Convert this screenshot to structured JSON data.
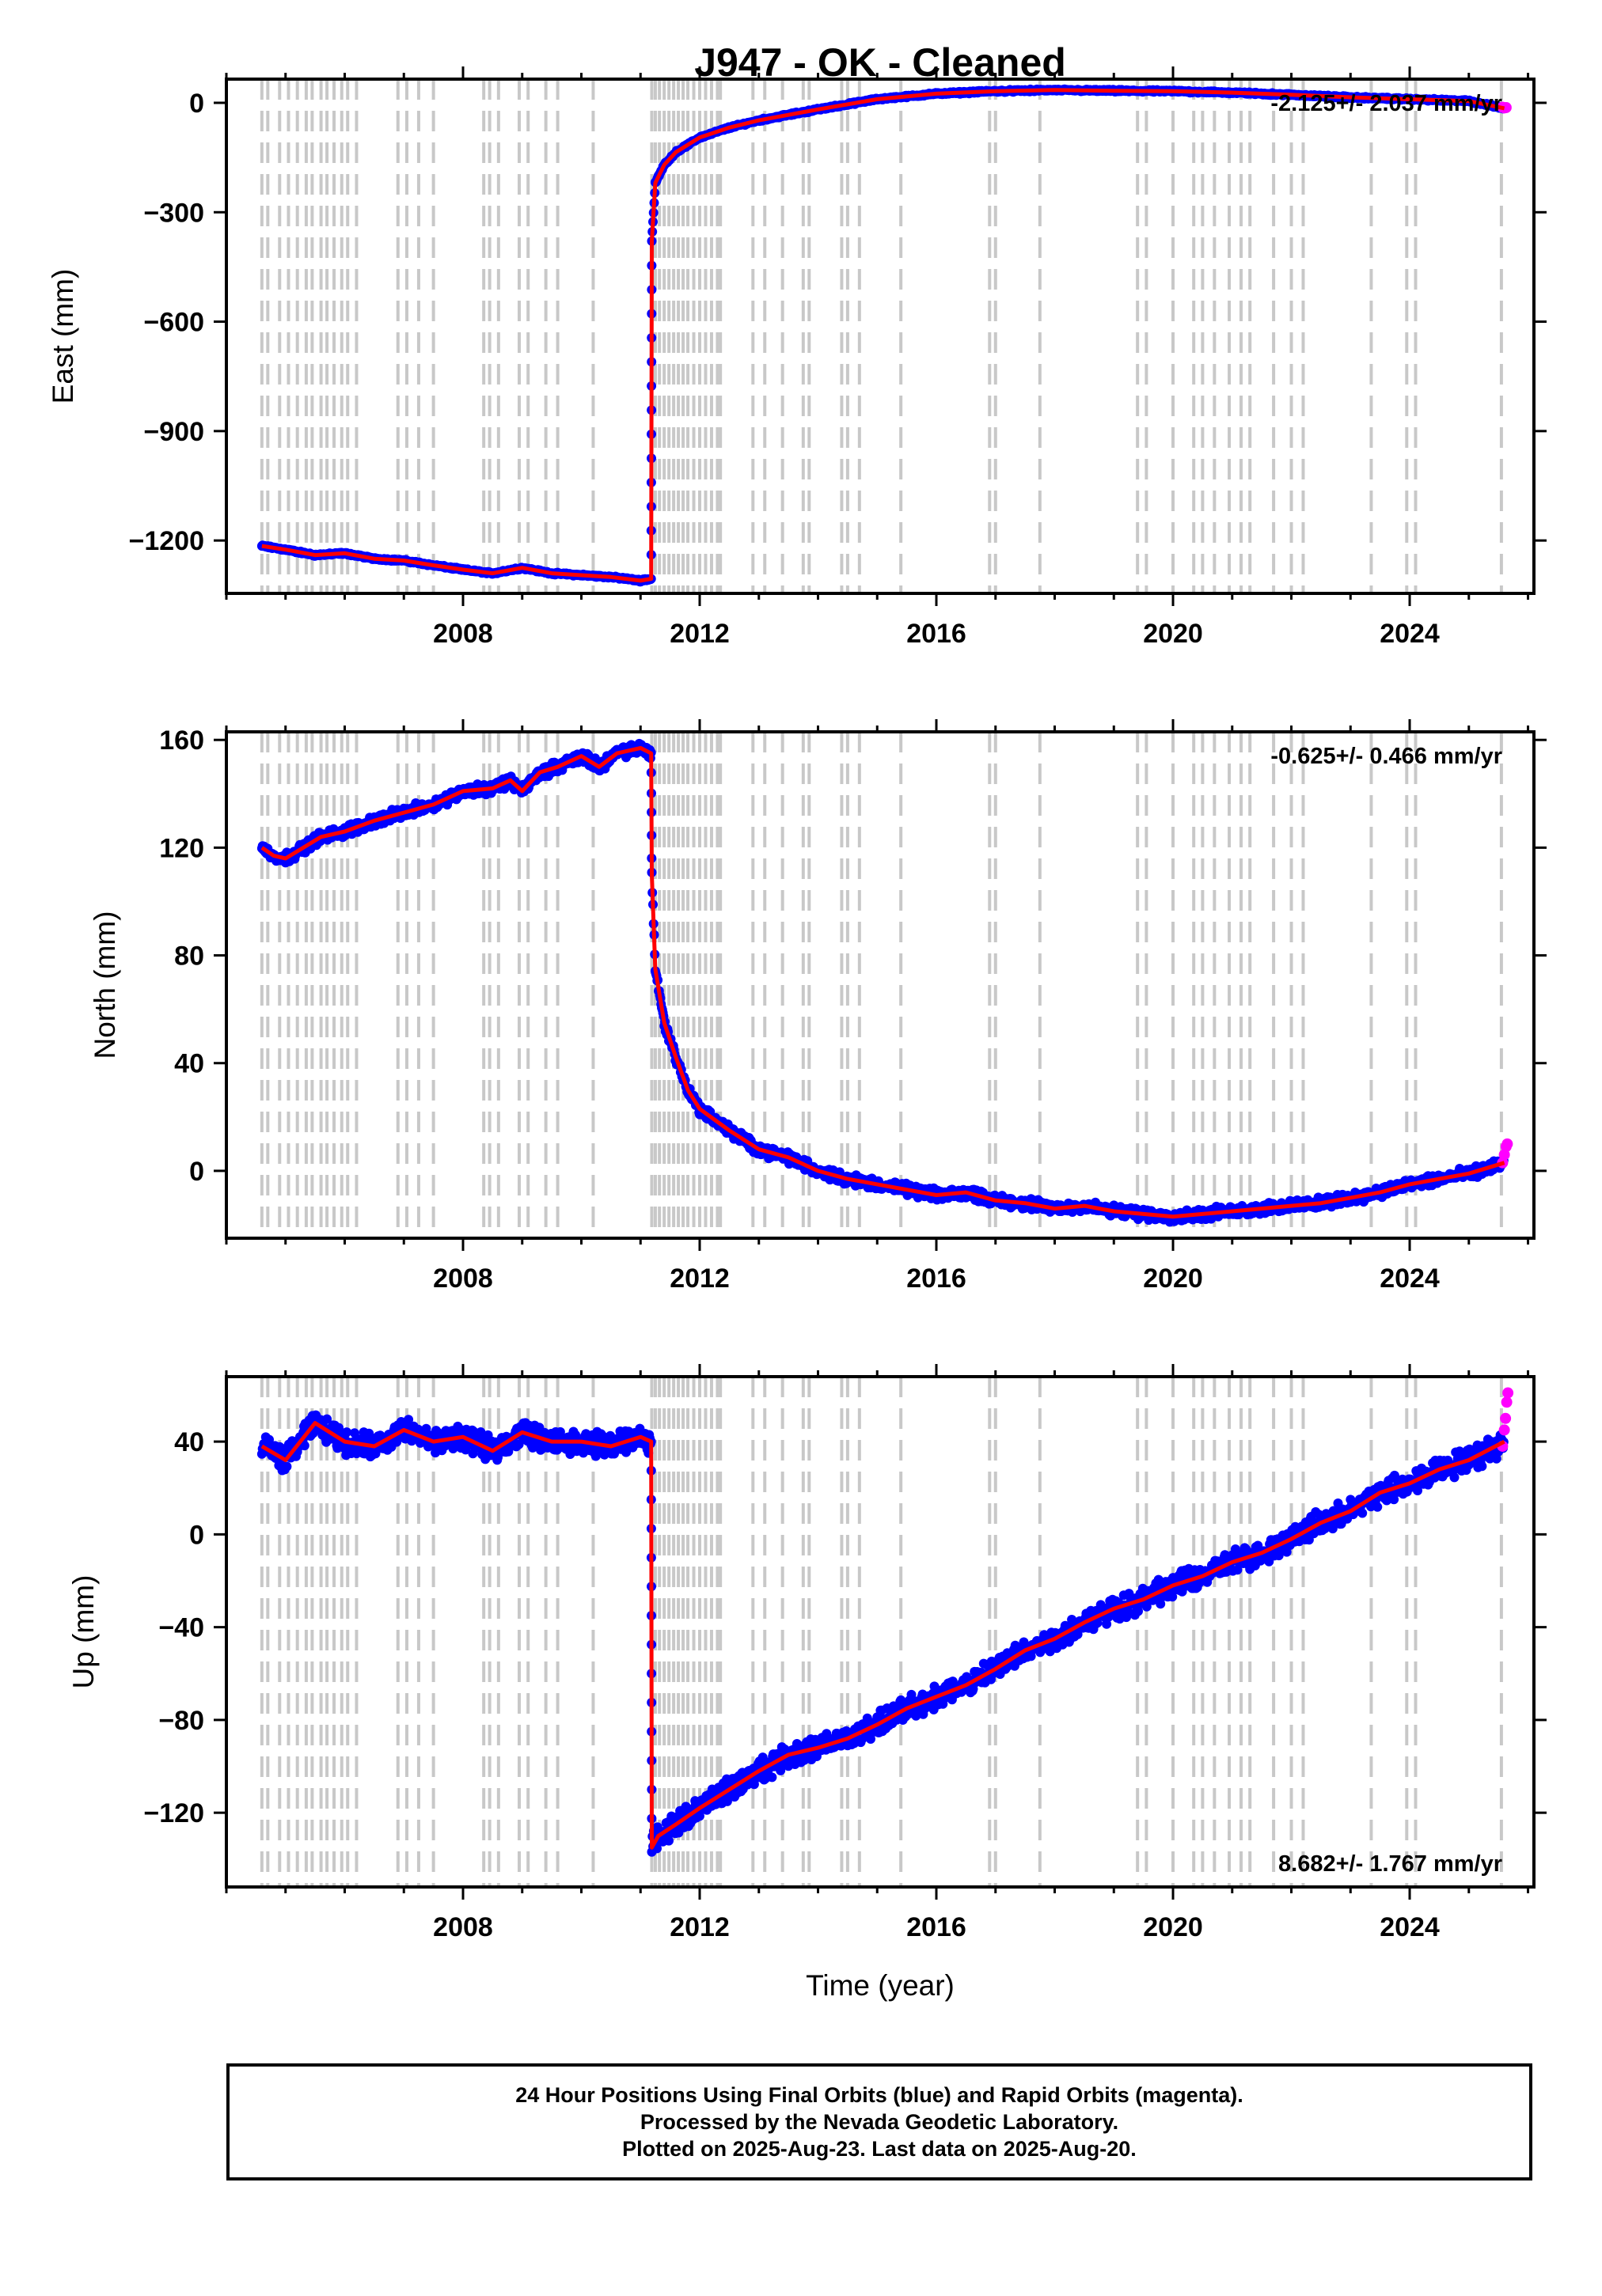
{
  "figure": {
    "title": "J947  - OK - Cleaned",
    "xlabel": "Time (year)"
  },
  "colors": {
    "final_orbits": "#0000ff",
    "rapid_orbits": "#ff00ff",
    "model": "#ff0000",
    "event_lines": "#c8c8c8",
    "frame": "#000000"
  },
  "footer": {
    "lines": [
      "24 Hour Positions Using Final Orbits (blue) and Rapid Orbits (magenta).",
      "Processed by the Nevada Geodetic Laboratory.",
      "Plotted on 2025-Aug-23. Last data on 2025-Aug-20."
    ]
  },
  "chart_data": [
    {
      "type": "scatter",
      "ylabel": "East (mm)",
      "rate_label": "-2.125+/- 2.037 mm/yr",
      "rate_position": "top-right",
      "xlim": [
        2004.0,
        2026.1
      ],
      "ylim": [
        -1345,
        65
      ],
      "xticks": [
        2008,
        2012,
        2016,
        2020,
        2024
      ],
      "yticks": [
        0,
        -300,
        -600,
        -900,
        -1200
      ],
      "ytick_labels": [
        "0",
        "−300",
        "−600",
        "−900",
        "−1200"
      ],
      "grid": false,
      "series": [
        {
          "kind": "final_orbits",
          "x": [
            2004.6,
            2005.0,
            2005.5,
            2006.0,
            2006.5,
            2007.0,
            2007.5,
            2008.0,
            2008.5,
            2009.0,
            2009.5,
            2010.0,
            2010.5,
            2011.0,
            2011.18,
            2011.19,
            2011.25,
            2011.4,
            2011.6,
            2012.0,
            2012.5,
            2013.0,
            2013.5,
            2014.0,
            2015.0,
            2016.0,
            2017.0,
            2018.0,
            2019.0,
            2020.0,
            2021.0,
            2022.0,
            2023.0,
            2024.0,
            2025.0,
            2025.6
          ],
          "y": [
            -1215,
            -1225,
            -1240,
            -1235,
            -1250,
            -1255,
            -1268,
            -1280,
            -1290,
            -1275,
            -1290,
            -1295,
            -1300,
            -1310,
            -1305,
            -380,
            -220,
            -170,
            -135,
            -95,
            -68,
            -48,
            -33,
            -18,
            10,
            25,
            32,
            35,
            33,
            32,
            28,
            22,
            15,
            10,
            5,
            -15
          ]
        },
        {
          "kind": "rapid_orbits",
          "x": [
            2025.57,
            2025.6,
            2025.63
          ],
          "y": [
            -12,
            -14,
            -13
          ]
        },
        {
          "kind": "model",
          "x": [
            2004.6,
            2005.0,
            2005.5,
            2006.0,
            2006.5,
            2007.0,
            2007.5,
            2008.0,
            2008.5,
            2009.0,
            2009.5,
            2010.0,
            2010.5,
            2011.0,
            2011.18,
            2011.19,
            2011.25,
            2011.4,
            2011.6,
            2012.0,
            2012.5,
            2013.0,
            2013.5,
            2014.0,
            2015.0,
            2016.0,
            2017.0,
            2018.0,
            2019.0,
            2020.0,
            2021.0,
            2022.0,
            2023.0,
            2024.0,
            2025.0,
            2025.6
          ],
          "y": [
            -1215,
            -1225,
            -1240,
            -1235,
            -1250,
            -1255,
            -1268,
            -1280,
            -1290,
            -1275,
            -1290,
            -1295,
            -1300,
            -1310,
            -1305,
            -380,
            -220,
            -170,
            -135,
            -95,
            -68,
            -48,
            -33,
            -18,
            10,
            25,
            32,
            35,
            33,
            32,
            28,
            22,
            15,
            10,
            5,
            -15
          ]
        }
      ]
    },
    {
      "type": "scatter",
      "ylabel": "North (mm)",
      "rate_label": "-0.625+/- 0.466 mm/yr",
      "rate_position": "top-right",
      "xlim": [
        2004.0,
        2026.1
      ],
      "ylim": [
        -25,
        163
      ],
      "xticks": [
        2008,
        2012,
        2016,
        2020,
        2024
      ],
      "yticks": [
        160,
        120,
        80,
        40,
        0
      ],
      "ytick_labels": [
        "160",
        "120",
        "80",
        "40",
        "0"
      ],
      "grid": false,
      "series": [
        {
          "kind": "final_orbits",
          "x": [
            2004.6,
            2004.8,
            2005.0,
            2005.3,
            2005.6,
            2006.0,
            2006.5,
            2007.0,
            2007.5,
            2008.0,
            2008.5,
            2008.8,
            2009.0,
            2009.3,
            2009.6,
            2010.0,
            2010.3,
            2010.6,
            2011.0,
            2011.18,
            2011.19,
            2011.25,
            2011.4,
            2011.6,
            2011.8,
            2012.0,
            2012.5,
            2013.0,
            2013.5,
            2014.0,
            2014.5,
            2015.0,
            2015.5,
            2016.0,
            2016.5,
            2017.0,
            2017.5,
            2018.0,
            2018.5,
            2019.0,
            2019.5,
            2020.0,
            2020.5,
            2021.0,
            2021.5,
            2022.0,
            2022.5,
            2023.0,
            2023.5,
            2024.0,
            2024.5,
            2025.0,
            2025.6
          ],
          "y": [
            120,
            117,
            116,
            120,
            124,
            126,
            130,
            133,
            136,
            141,
            142,
            145,
            141,
            148,
            150,
            154,
            150,
            155,
            157,
            155,
            110,
            75,
            55,
            42,
            30,
            23,
            15,
            8,
            5,
            0,
            -3,
            -5,
            -7,
            -9,
            -8,
            -11,
            -12,
            -14,
            -13,
            -15,
            -16,
            -17,
            -16,
            -15,
            -14,
            -13,
            -12,
            -10,
            -8,
            -5,
            -3,
            -1,
            3
          ]
        },
        {
          "kind": "rapid_orbits",
          "x": [
            2025.57,
            2025.6,
            2025.63,
            2025.65
          ],
          "y": [
            3,
            6,
            9,
            10
          ]
        },
        {
          "kind": "model",
          "x": [
            2004.6,
            2004.8,
            2005.0,
            2005.3,
            2005.6,
            2006.0,
            2006.5,
            2007.0,
            2007.5,
            2008.0,
            2008.5,
            2008.8,
            2009.0,
            2009.3,
            2009.6,
            2010.0,
            2010.3,
            2010.6,
            2011.0,
            2011.18,
            2011.19,
            2011.25,
            2011.4,
            2011.6,
            2011.8,
            2012.0,
            2012.5,
            2013.0,
            2013.5,
            2014.0,
            2014.5,
            2015.0,
            2015.5,
            2016.0,
            2016.5,
            2017.0,
            2017.5,
            2018.0,
            2018.5,
            2019.0,
            2019.5,
            2020.0,
            2020.5,
            2021.0,
            2021.5,
            2022.0,
            2022.5,
            2023.0,
            2023.5,
            2024.0,
            2024.5,
            2025.0,
            2025.6
          ],
          "y": [
            120,
            117,
            116,
            120,
            124,
            126,
            130,
            133,
            136,
            141,
            142,
            145,
            141,
            148,
            150,
            154,
            150,
            155,
            157,
            155,
            110,
            75,
            55,
            42,
            30,
            23,
            15,
            8,
            5,
            0,
            -3,
            -5,
            -7,
            -9,
            -8,
            -11,
            -12,
            -14,
            -13,
            -15,
            -16,
            -17,
            -16,
            -15,
            -14,
            -13,
            -12,
            -10,
            -8,
            -5,
            -3,
            -1,
            3
          ]
        }
      ]
    },
    {
      "type": "scatter",
      "ylabel": "Up (mm)",
      "rate_label": "8.682+/- 1.767 mm/yr",
      "rate_position": "bottom-right",
      "xlim": [
        2004.0,
        2026.1
      ],
      "ylim": [
        -152,
        68
      ],
      "xticks": [
        2008,
        2012,
        2016,
        2020,
        2024
      ],
      "yticks": [
        40,
        0,
        -40,
        -80,
        -120
      ],
      "ytick_labels": [
        "40",
        "0",
        "−40",
        "−80",
        "−120"
      ],
      "grid": false,
      "series": [
        {
          "kind": "final_orbits",
          "x": [
            2004.6,
            2005.0,
            2005.5,
            2006.0,
            2006.5,
            2007.0,
            2007.5,
            2008.0,
            2008.5,
            2009.0,
            2009.5,
            2010.0,
            2010.5,
            2011.0,
            2011.18,
            2011.19,
            2011.3,
            2011.6,
            2012.0,
            2012.5,
            2013.0,
            2013.5,
            2014.0,
            2014.5,
            2015.0,
            2015.5,
            2016.0,
            2016.5,
            2017.0,
            2017.5,
            2018.0,
            2018.5,
            2019.0,
            2019.5,
            2020.0,
            2020.5,
            2021.0,
            2021.5,
            2022.0,
            2022.5,
            2023.0,
            2023.5,
            2024.0,
            2024.5,
            2025.0,
            2025.6
          ],
          "y": [
            38,
            32,
            48,
            40,
            38,
            45,
            40,
            42,
            36,
            44,
            40,
            40,
            38,
            42,
            40,
            -135,
            -130,
            -125,
            -118,
            -110,
            -102,
            -95,
            -92,
            -88,
            -82,
            -75,
            -70,
            -65,
            -58,
            -50,
            -45,
            -38,
            -32,
            -28,
            -22,
            -18,
            -12,
            -8,
            -2,
            5,
            10,
            18,
            22,
            28,
            32,
            40
          ]
        },
        {
          "kind": "rapid_orbits",
          "x": [
            2025.57,
            2025.6,
            2025.62,
            2025.64,
            2025.66
          ],
          "y": [
            38,
            45,
            50,
            57,
            61
          ]
        },
        {
          "kind": "model",
          "x": [
            2004.6,
            2005.0,
            2005.5,
            2006.0,
            2006.5,
            2007.0,
            2007.5,
            2008.0,
            2008.5,
            2009.0,
            2009.5,
            2010.0,
            2010.5,
            2011.0,
            2011.18,
            2011.19,
            2011.3,
            2011.6,
            2012.0,
            2012.5,
            2013.0,
            2013.5,
            2014.0,
            2014.5,
            2015.0,
            2015.5,
            2016.0,
            2016.5,
            2017.0,
            2017.5,
            2018.0,
            2018.5,
            2019.0,
            2019.5,
            2020.0,
            2020.5,
            2021.0,
            2021.5,
            2022.0,
            2022.5,
            2023.0,
            2023.5,
            2024.0,
            2024.5,
            2025.0,
            2025.6
          ],
          "y": [
            38,
            32,
            48,
            40,
            38,
            45,
            40,
            42,
            36,
            44,
            40,
            40,
            38,
            42,
            40,
            -135,
            -130,
            -125,
            -118,
            -110,
            -102,
            -95,
            -92,
            -88,
            -82,
            -75,
            -70,
            -65,
            -58,
            -50,
            -45,
            -38,
            -32,
            -28,
            -22,
            -18,
            -12,
            -8,
            -2,
            5,
            10,
            18,
            22,
            28,
            32,
            40
          ]
        }
      ]
    }
  ],
  "event_lines_years": [
    2004.6,
    2004.7,
    2004.9,
    2005.05,
    2005.2,
    2005.35,
    2005.45,
    2005.6,
    2005.7,
    2005.82,
    2005.95,
    2006.05,
    2006.2,
    2006.9,
    2007.05,
    2007.25,
    2007.5,
    2008.35,
    2008.45,
    2008.6,
    2008.95,
    2009.1,
    2009.4,
    2009.6,
    2010.2,
    2011.19,
    2011.25,
    2011.32,
    2011.4,
    2011.48,
    2011.56,
    2011.64,
    2011.72,
    2011.8,
    2011.9,
    2012.0,
    2012.1,
    2012.2,
    2012.3,
    2012.35,
    2012.9,
    2013.1,
    2013.4,
    2013.75,
    2013.85,
    2014.4,
    2014.5,
    2014.7,
    2015.4,
    2016.9,
    2017.0,
    2017.75,
    2019.4,
    2019.55,
    2020.0,
    2020.35,
    2020.5,
    2020.7,
    2020.95,
    2021.15,
    2021.3,
    2021.7,
    2022.0,
    2022.2,
    2023.35,
    2023.95,
    2024.1,
    2025.55
  ]
}
